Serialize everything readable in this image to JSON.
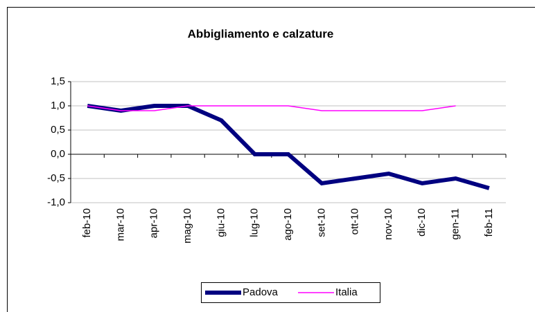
{
  "chart_data": {
    "type": "line",
    "title": "Abbigliamento e calzature",
    "categories": [
      "feb-10",
      "mar-10",
      "apr-10",
      "mag-10",
      "giu-10",
      "lug-10",
      "ago-10",
      "set-10",
      "ott-10",
      "nov-10",
      "dic-10",
      "gen-11",
      "feb-11"
    ],
    "series": [
      {
        "name": "Padova",
        "color": "#000080",
        "values": [
          1.0,
          0.9,
          1.0,
          1.0,
          0.7,
          0.0,
          0.0,
          -0.6,
          -0.5,
          -0.4,
          -0.6,
          -0.5,
          -0.7
        ]
      },
      {
        "name": "Italia",
        "color": "#ff00ff",
        "values": [
          1.0,
          0.9,
          0.9,
          1.0,
          1.0,
          1.0,
          1.0,
          0.9,
          0.9,
          0.9,
          0.9,
          1.0,
          null
        ]
      }
    ],
    "ylim": [
      -1.0,
      1.5
    ],
    "yticks": [
      {
        "value": -1.0,
        "label": "-1,0"
      },
      {
        "value": -0.5,
        "label": "-0,5"
      },
      {
        "value": 0.0,
        "label": "0,0"
      },
      {
        "value": 0.5,
        "label": "0,5"
      },
      {
        "value": 1.0,
        "label": "1,0"
      },
      {
        "value": 1.5,
        "label": "1,5"
      }
    ],
    "grid": true,
    "legend": "bottom"
  }
}
